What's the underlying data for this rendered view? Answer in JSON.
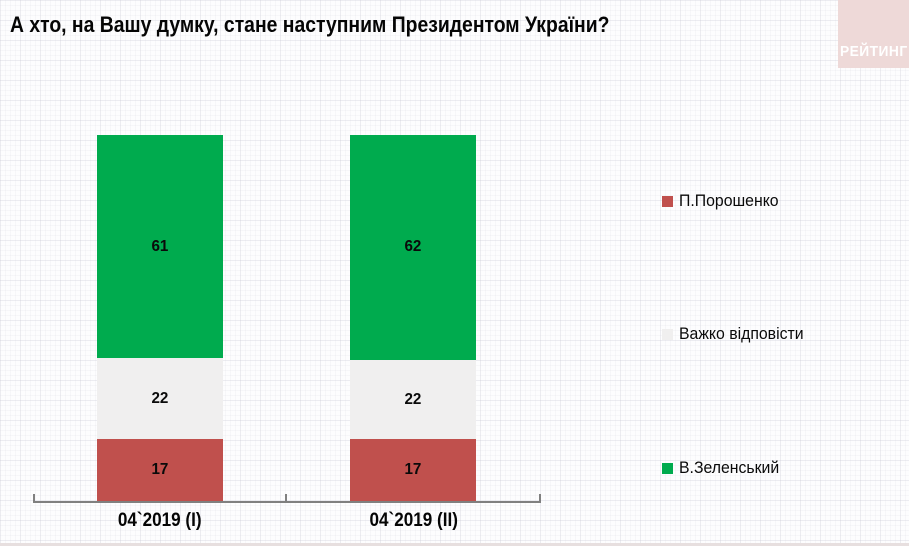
{
  "title": "А хто, на Вашу думку, стане наступним Президентом України?",
  "logo": {
    "text": "РЕЙТИНГ",
    "bg_color": "#eed9d8",
    "text_color": "#ffffff"
  },
  "chart_data": {
    "type": "bar",
    "subtype": "100%-stacked-column",
    "title": "А хто, на Вашу думку, стане наступним Президентом України?",
    "categories": [
      "04`2019 (I)",
      "04`2019 (II)"
    ],
    "series": [
      {
        "name": "В.Зеленський",
        "color": "#00ab4e",
        "values": [
          61,
          62
        ]
      },
      {
        "name": "Важко відповісти",
        "color": "#f0efef",
        "values": [
          22,
          22
        ]
      },
      {
        "name": "П.Порошенко",
        "color": "#c0504d",
        "values": [
          17,
          17
        ]
      }
    ],
    "value_labels_shown": true,
    "grid": false,
    "legend_position": "right",
    "axis": {
      "baseline_color": "#808080",
      "ylim": [
        0,
        100
      ]
    }
  },
  "legend": {
    "items": [
      {
        "label": "П.Порошенко",
        "color": "#c0504d"
      },
      {
        "label": "Важко відповісти",
        "color": "#f0efef"
      },
      {
        "label": "В.Зеленський",
        "color": "#00ab4e"
      }
    ]
  }
}
